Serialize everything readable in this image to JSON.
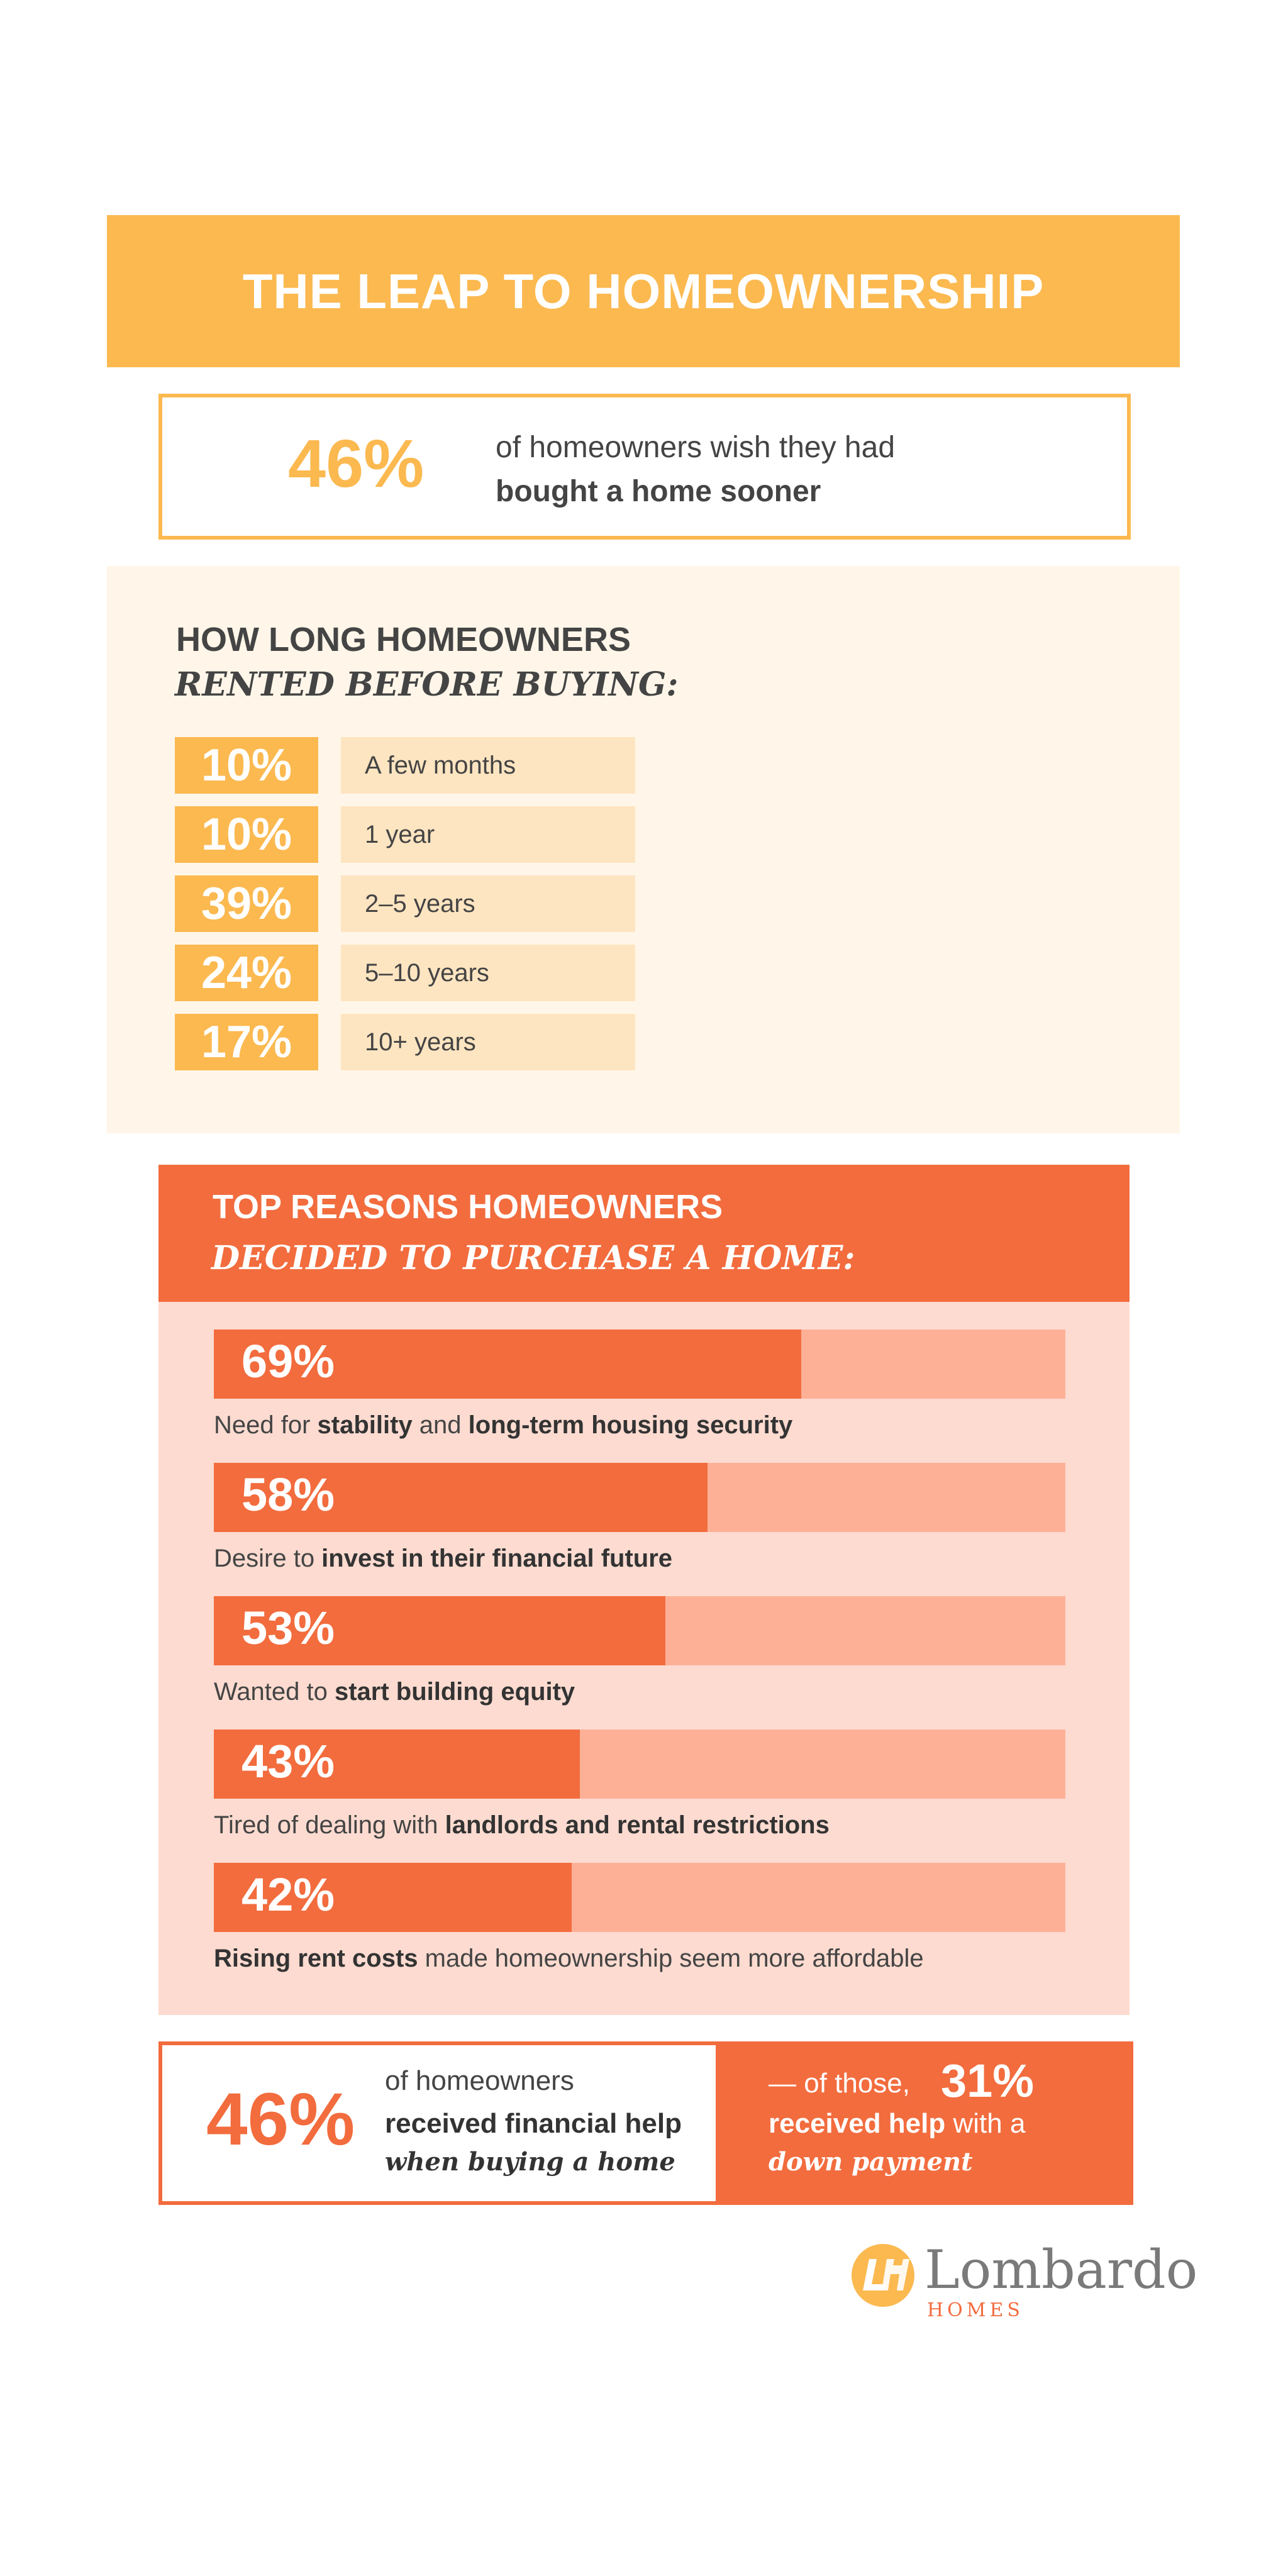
{
  "title": "THE LEAP TO HOMEOWNERSHIP",
  "stat_sooner": {
    "percent": "46%",
    "text": "of homeowners wish they had",
    "text_bold": "bought a home sooner"
  },
  "rented": {
    "heading": "HOW LONG HOMEOWNERS",
    "subheading": "RENTED BEFORE BUYING:"
  },
  "reasons": {
    "heading": "TOP REASONS HOMEOWNERS",
    "subheading": "DECIDED TO PURCHASE A HOME:"
  },
  "stat_help": {
    "percent": "46%",
    "line1": "of homeowners",
    "line2": "received financial help",
    "line3": "when buying a home",
    "right_prefix": "— of those,",
    "right_percent": "31%",
    "right_bold": "received help",
    "right_rest": " with a",
    "right_line3": "down payment"
  },
  "logo": {
    "name": "Lombardo",
    "sub": "HOMES"
  },
  "colors": {
    "yellow": "#fbb950",
    "orange": "#f26c3e",
    "cream": "#fff6e9",
    "peach": "#fddbd0"
  },
  "chart_data": [
    {
      "type": "table",
      "title": "HOW LONG HOMEOWNERS RENTED BEFORE BUYING:",
      "rows": [
        {
          "label": "A few months",
          "value": 10,
          "display": "10%"
        },
        {
          "label": "1 year",
          "value": 10,
          "display": "10%"
        },
        {
          "label": "2–5 years",
          "value": 39,
          "display": "39%"
        },
        {
          "label": "5–10 years",
          "value": 24,
          "display": "24%"
        },
        {
          "label": "10+ years",
          "value": 17,
          "display": "17%"
        }
      ]
    },
    {
      "type": "bar",
      "title": "TOP REASONS HOMEOWNERS DECIDED TO PURCHASE A HOME:",
      "ylim": [
        0,
        100
      ],
      "bars": [
        {
          "value": 69,
          "display": "69%",
          "desc": [
            {
              "t": "Need for ",
              "b": false
            },
            {
              "t": "stability",
              "b": true
            },
            {
              "t": " and ",
              "b": false
            },
            {
              "t": "long-term housing security",
              "b": true
            }
          ]
        },
        {
          "value": 58,
          "display": "58%",
          "desc": [
            {
              "t": "Desire to ",
              "b": false
            },
            {
              "t": "invest in their financial future",
              "b": true
            }
          ]
        },
        {
          "value": 53,
          "display": "53%",
          "desc": [
            {
              "t": "Wanted to ",
              "b": false
            },
            {
              "t": "start building equity",
              "b": true
            }
          ]
        },
        {
          "value": 43,
          "display": "43%",
          "desc": [
            {
              "t": "Tired of dealing with ",
              "b": false
            },
            {
              "t": "landlords and rental restrictions",
              "b": true
            }
          ]
        },
        {
          "value": 42,
          "display": "42%",
          "desc": [
            {
              "t": "Rising rent costs",
              "b": true
            },
            {
              "t": " made homeownership seem more affordable",
              "b": false
            }
          ]
        }
      ]
    }
  ]
}
